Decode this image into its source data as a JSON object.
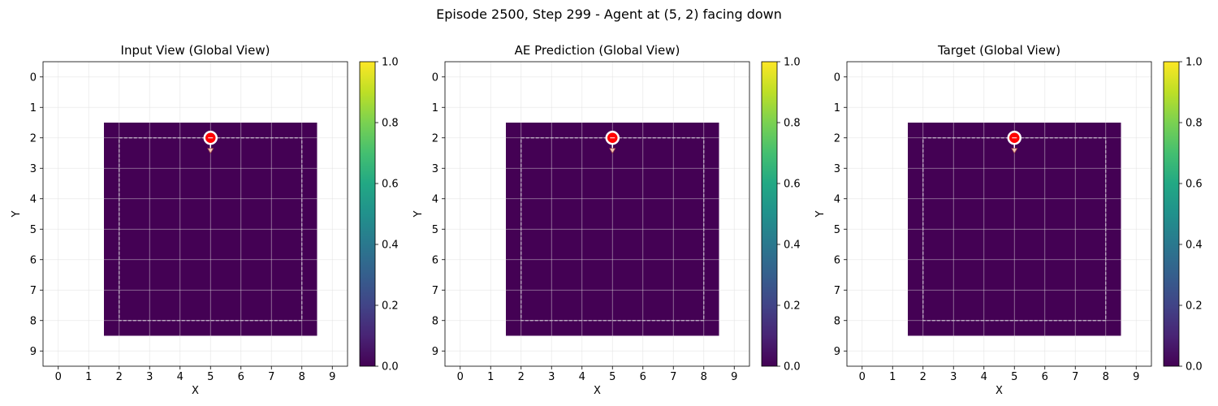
{
  "suptitle": "Episode 2500, Step 299 - Agent at (5, 2) facing down",
  "colors": {
    "background_cell": "#440154",
    "grid": "#dddddd",
    "dashed_border": "#c8bccc",
    "agent_fill": "#ff0000",
    "agent_ring": "#ffffff",
    "arrow_fill": "#f5c9b8"
  },
  "chart_data": [
    {
      "type": "heatmap",
      "title": "Input View (Global View)",
      "xlabel": "X",
      "ylabel": "Y",
      "x_ticks": [
        "0",
        "1",
        "2",
        "3",
        "4",
        "5",
        "6",
        "7",
        "8",
        "9"
      ],
      "y_ticks": [
        "0",
        "1",
        "2",
        "3",
        "4",
        "5",
        "6",
        "7",
        "8",
        "9"
      ],
      "xlim": [
        -0.5,
        9.5
      ],
      "ylim": [
        9.5,
        -0.5
      ],
      "grid": true,
      "colormap": "viridis",
      "clim": [
        0.0,
        1.0
      ],
      "colorbar_ticks": [
        "0.0",
        "0.2",
        "0.4",
        "0.6",
        "0.8",
        "1.0"
      ],
      "filled_region": {
        "x": [
          2,
          8
        ],
        "y": [
          2,
          8
        ],
        "value": 0.0
      },
      "dashed_rect": {
        "x": [
          2,
          8
        ],
        "y": [
          2,
          8
        ]
      },
      "agent": {
        "x": 5,
        "y": 2,
        "direction": "down"
      }
    },
    {
      "type": "heatmap",
      "title": "AE Prediction (Global View)",
      "xlabel": "X",
      "ylabel": "Y",
      "x_ticks": [
        "0",
        "1",
        "2",
        "3",
        "4",
        "5",
        "6",
        "7",
        "8",
        "9"
      ],
      "y_ticks": [
        "0",
        "1",
        "2",
        "3",
        "4",
        "5",
        "6",
        "7",
        "8",
        "9"
      ],
      "xlim": [
        -0.5,
        9.5
      ],
      "ylim": [
        9.5,
        -0.5
      ],
      "grid": true,
      "colormap": "viridis",
      "clim": [
        0.0,
        1.0
      ],
      "colorbar_ticks": [
        "0.0",
        "0.2",
        "0.4",
        "0.6",
        "0.8",
        "1.0"
      ],
      "filled_region": {
        "x": [
          2,
          8
        ],
        "y": [
          2,
          8
        ],
        "value": 0.0
      },
      "dashed_rect": {
        "x": [
          2,
          8
        ],
        "y": [
          2,
          8
        ]
      },
      "agent": {
        "x": 5,
        "y": 2,
        "direction": "down"
      }
    },
    {
      "type": "heatmap",
      "title": "Target (Global View)",
      "xlabel": "X",
      "ylabel": "Y",
      "x_ticks": [
        "0",
        "1",
        "2",
        "3",
        "4",
        "5",
        "6",
        "7",
        "8",
        "9"
      ],
      "y_ticks": [
        "0",
        "1",
        "2",
        "3",
        "4",
        "5",
        "6",
        "7",
        "8",
        "9"
      ],
      "xlim": [
        -0.5,
        9.5
      ],
      "ylim": [
        9.5,
        -0.5
      ],
      "grid": true,
      "colormap": "viridis",
      "clim": [
        0.0,
        1.0
      ],
      "colorbar_ticks": [
        "0.0",
        "0.2",
        "0.4",
        "0.6",
        "0.8",
        "1.0"
      ],
      "filled_region": {
        "x": [
          2,
          8
        ],
        "y": [
          2,
          8
        ],
        "value": 0.0
      },
      "dashed_rect": {
        "x": [
          2,
          8
        ],
        "y": [
          2,
          8
        ]
      },
      "agent": {
        "x": 5,
        "y": 2,
        "direction": "down"
      }
    }
  ]
}
